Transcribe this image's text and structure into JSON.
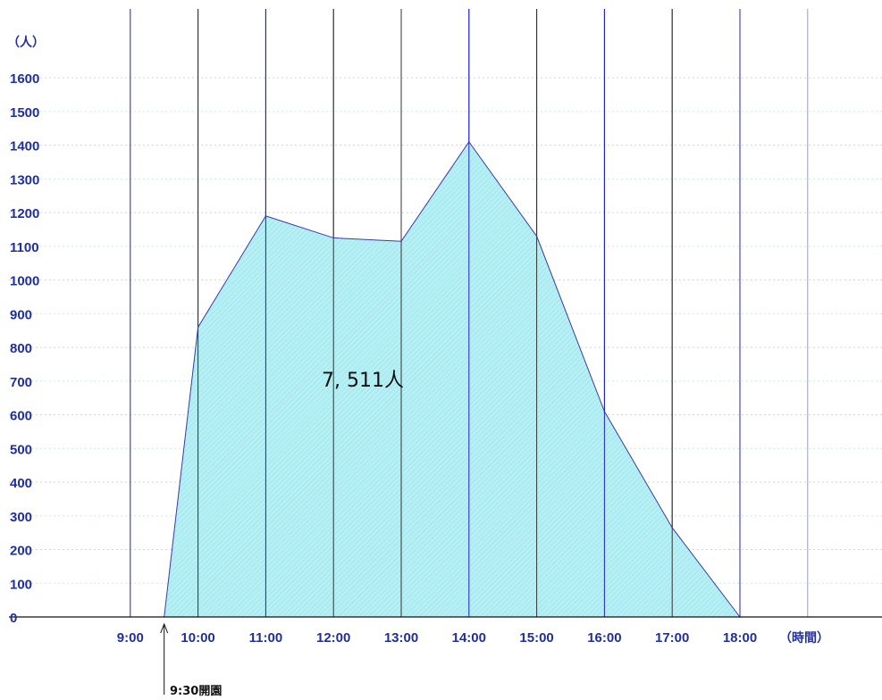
{
  "chart_data": {
    "type": "area",
    "y_unit_label": "（人）",
    "x_unit_label": "（時間）",
    "x_tick_labels": [
      "9:00",
      "10:00",
      "11:00",
      "12:00",
      "13:00",
      "14:00",
      "15:00",
      "16:00",
      "17:00",
      "18:00"
    ],
    "y_ticks": [
      0,
      100,
      200,
      300,
      400,
      500,
      600,
      700,
      800,
      900,
      1000,
      1100,
      1200,
      1300,
      1400,
      1500,
      1600
    ],
    "ylim": [
      0,
      1600
    ],
    "xlim": [
      "9:00",
      "19:00"
    ],
    "series": [
      {
        "points": [
          {
            "x": "9:30",
            "y": 0
          },
          {
            "x": "10:00",
            "y": 860
          },
          {
            "x": "11:00",
            "y": 1190
          },
          {
            "x": "12:00",
            "y": 1125
          },
          {
            "x": "13:00",
            "y": 1115
          },
          {
            "x": "14:00",
            "y": 1410
          },
          {
            "x": "15:00",
            "y": 1130
          },
          {
            "x": "16:00",
            "y": 610
          },
          {
            "x": "17:00",
            "y": 265
          },
          {
            "x": "18:00",
            "y": 0
          }
        ]
      }
    ],
    "total_label": "7, 511人",
    "annotation": {
      "x": "9:30",
      "text": "9:30開園"
    },
    "grid": true,
    "colors": {
      "fill": "#b6f0f4",
      "line": "#3a3aa8",
      "accent_grid": "#2020c8",
      "dark_grid": "#333333",
      "axis_text": "#1f2fa0"
    }
  }
}
